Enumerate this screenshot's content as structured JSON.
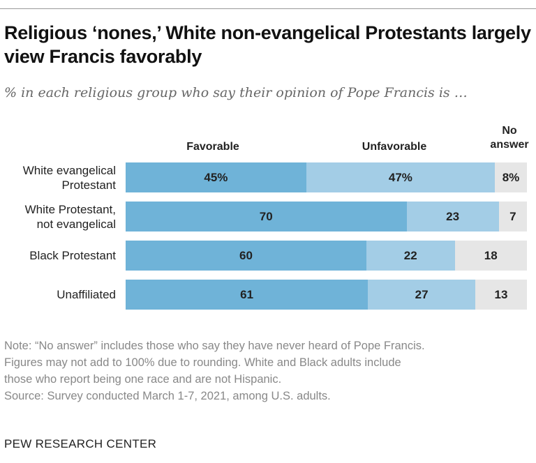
{
  "title": "Religious ‘nones,’ White non-evangelical Protestants largely view Francis favorably",
  "subtitle": "% in each religious group who say their opinion of Pope Francis is …",
  "chart_data": {
    "type": "bar",
    "orientation": "horizontal",
    "stacked": true,
    "categories": [
      "White evangelical Protestant",
      "White Protestant, not evangelical",
      "Black Protestant",
      "Unaffiliated"
    ],
    "category_lines": [
      [
        "White evangelical",
        "Protestant"
      ],
      [
        "White Protestant,",
        "not evangelical"
      ],
      [
        "Black Protestant"
      ],
      [
        "Unaffiliated"
      ]
    ],
    "series": [
      {
        "name": "Favorable",
        "values": [
          45,
          70,
          60,
          61
        ],
        "labels": [
          "45%",
          "70",
          "60",
          "61"
        ],
        "color": "#6fb3d8"
      },
      {
        "name": "Unfavorable",
        "values": [
          47,
          23,
          22,
          27
        ],
        "labels": [
          "47%",
          "23",
          "22",
          "27"
        ],
        "color": "#a3cde6"
      },
      {
        "name": "No answer",
        "name_lines": [
          "No",
          "answer"
        ],
        "values": [
          8,
          7,
          18,
          13
        ],
        "labels": [
          "8%",
          "7",
          "18",
          "13"
        ],
        "color": "#e6e6e6"
      }
    ]
  },
  "notes": [
    "Note: “No answer” includes those who say they have never heard of Pope Francis.",
    "Figures may not add to 100% due to rounding. White and Black adults include",
    "those who report being one race and are not Hispanic.",
    "Source: Survey conducted March 1-7, 2021, among U.S. adults."
  ],
  "source_logo": "PEW RESEARCH CENTER"
}
